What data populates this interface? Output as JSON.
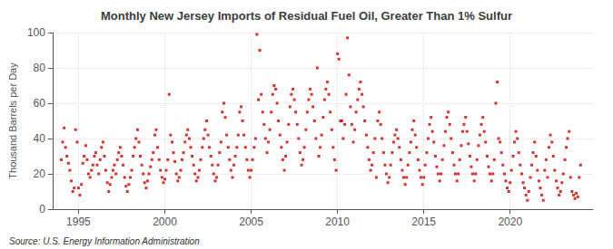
{
  "chart_data": {
    "type": "scatter",
    "title": "Monthly New Jersey Imports of Residual Fuel Oil, Greater Than 1% Sulfur",
    "ylabel": "Thousand Barrels per Day",
    "annotations": [
      "Source: U.S. Energy Information Administration"
    ],
    "color": "#cc0000",
    "marker": "square",
    "grid": true,
    "xlim": [
      1993.5,
      2024.8
    ],
    "xticks": [
      1995,
      2000,
      2005,
      2010,
      2015,
      2020
    ],
    "ylim": [
      0,
      100
    ],
    "yticks": [
      0,
      20,
      40,
      60,
      80,
      100
    ],
    "x": [
      1994.0,
      1994.08,
      1994.17,
      1994.25,
      1994.33,
      1994.42,
      1994.5,
      1994.58,
      1994.67,
      1994.75,
      1994.83,
      1994.92,
      1995.0,
      1995.08,
      1995.17,
      1995.25,
      1995.33,
      1995.42,
      1995.5,
      1995.58,
      1995.67,
      1995.75,
      1995.83,
      1995.92,
      1996.0,
      1996.08,
      1996.17,
      1996.25,
      1996.33,
      1996.42,
      1996.5,
      1996.58,
      1996.67,
      1996.75,
      1996.83,
      1996.92,
      1997.0,
      1997.08,
      1997.17,
      1997.25,
      1997.33,
      1997.42,
      1997.5,
      1997.58,
      1997.67,
      1997.75,
      1997.83,
      1997.92,
      1998.0,
      1998.08,
      1998.17,
      1998.25,
      1998.33,
      1998.42,
      1998.5,
      1998.58,
      1998.67,
      1998.75,
      1998.83,
      1998.92,
      1999.0,
      1999.08,
      1999.17,
      1999.25,
      1999.33,
      1999.42,
      1999.5,
      1999.58,
      1999.67,
      1999.75,
      1999.83,
      1999.92,
      2000.0,
      2000.08,
      2000.17,
      2000.25,
      2000.33,
      2000.42,
      2000.5,
      2000.58,
      2000.67,
      2000.75,
      2000.83,
      2000.92,
      2001.0,
      2001.08,
      2001.17,
      2001.25,
      2001.33,
      2001.42,
      2001.5,
      2001.58,
      2001.67,
      2001.75,
      2001.83,
      2001.92,
      2002.0,
      2002.08,
      2002.17,
      2002.25,
      2002.33,
      2002.42,
      2002.5,
      2002.58,
      2002.67,
      2002.75,
      2002.83,
      2002.92,
      2003.0,
      2003.08,
      2003.17,
      2003.25,
      2003.33,
      2003.42,
      2003.5,
      2003.58,
      2003.67,
      2003.75,
      2003.83,
      2003.92,
      2004.0,
      2004.08,
      2004.17,
      2004.25,
      2004.33,
      2004.42,
      2004.5,
      2004.58,
      2004.67,
      2004.75,
      2004.83,
      2004.92,
      2005.0,
      2005.08,
      2005.17,
      2005.25,
      2005.33,
      2005.42,
      2005.5,
      2005.58,
      2005.67,
      2005.75,
      2005.83,
      2005.92,
      2006.0,
      2006.08,
      2006.17,
      2006.25,
      2006.33,
      2006.42,
      2006.5,
      2006.58,
      2006.67,
      2006.75,
      2006.83,
      2006.92,
      2007.0,
      2007.08,
      2007.17,
      2007.25,
      2007.33,
      2007.42,
      2007.5,
      2007.58,
      2007.67,
      2007.75,
      2007.83,
      2007.92,
      2008.0,
      2008.08,
      2008.17,
      2008.25,
      2008.33,
      2008.42,
      2008.5,
      2008.58,
      2008.67,
      2008.75,
      2008.83,
      2008.92,
      2009.0,
      2009.08,
      2009.17,
      2009.25,
      2009.33,
      2009.42,
      2009.5,
      2009.58,
      2009.67,
      2009.75,
      2009.83,
      2009.92,
      2010.0,
      2010.08,
      2010.17,
      2010.25,
      2010.33,
      2010.42,
      2010.5,
      2010.58,
      2010.67,
      2010.75,
      2010.83,
      2010.92,
      2011.0,
      2011.08,
      2011.17,
      2011.25,
      2011.33,
      2011.42,
      2011.5,
      2011.58,
      2011.67,
      2011.75,
      2011.83,
      2011.92,
      2012.0,
      2012.08,
      2012.17,
      2012.25,
      2012.33,
      2012.42,
      2012.5,
      2012.58,
      2012.67,
      2012.75,
      2012.83,
      2012.92,
      2013.0,
      2013.08,
      2013.17,
      2013.25,
      2013.33,
      2013.42,
      2013.5,
      2013.58,
      2013.67,
      2013.75,
      2013.83,
      2013.92,
      2014.0,
      2014.08,
      2014.17,
      2014.25,
      2014.33,
      2014.42,
      2014.5,
      2014.58,
      2014.67,
      2014.75,
      2014.83,
      2014.92,
      2015.0,
      2015.08,
      2015.17,
      2015.25,
      2015.33,
      2015.42,
      2015.5,
      2015.58,
      2015.67,
      2015.75,
      2015.83,
      2015.92,
      2016.0,
      2016.08,
      2016.17,
      2016.25,
      2016.33,
      2016.42,
      2016.5,
      2016.58,
      2016.67,
      2016.75,
      2016.83,
      2016.92,
      2017.0,
      2017.08,
      2017.17,
      2017.25,
      2017.33,
      2017.42,
      2017.5,
      2017.58,
      2017.67,
      2017.75,
      2017.83,
      2017.92,
      2018.0,
      2018.08,
      2018.17,
      2018.25,
      2018.33,
      2018.42,
      2018.5,
      2018.58,
      2018.67,
      2018.75,
      2018.83,
      2018.92,
      2019.0,
      2019.08,
      2019.17,
      2019.25,
      2019.33,
      2019.42,
      2019.5,
      2019.58,
      2019.67,
      2019.75,
      2019.83,
      2019.92,
      2020.0,
      2020.08,
      2020.17,
      2020.25,
      2020.33,
      2020.42,
      2020.5,
      2020.58,
      2020.67,
      2020.75,
      2020.83,
      2020.92,
      2021.0,
      2021.08,
      2021.17,
      2021.25,
      2021.33,
      2021.42,
      2021.5,
      2021.58,
      2021.67,
      2021.75,
      2021.83,
      2021.92,
      2022.0,
      2022.08,
      2022.17,
      2022.25,
      2022.33,
      2022.42,
      2022.5,
      2022.58,
      2022.67,
      2022.75,
      2022.83,
      2022.92,
      2023.0,
      2023.08,
      2023.17,
      2023.25,
      2023.33,
      2023.42,
      2023.5,
      2023.58,
      2023.67,
      2023.75,
      2023.83,
      2023.92,
      2024.0,
      2024.08
    ],
    "values": [
      28,
      38,
      46,
      35,
      30,
      26,
      22,
      16,
      10,
      12,
      45,
      38,
      12,
      8,
      14,
      26,
      30,
      36,
      28,
      20,
      18,
      22,
      25,
      30,
      32,
      25,
      20,
      28,
      35,
      38,
      30,
      22,
      15,
      10,
      14,
      18,
      22,
      25,
      20,
      28,
      32,
      35,
      30,
      25,
      18,
      13,
      10,
      14,
      18,
      22,
      30,
      35,
      40,
      45,
      38,
      30,
      25,
      20,
      15,
      12,
      16,
      20,
      24,
      28,
      32,
      42,
      45,
      35,
      28,
      22,
      18,
      15,
      17,
      22,
      28,
      65,
      42,
      38,
      32,
      27,
      20,
      16,
      18,
      22,
      28,
      32,
      38,
      42,
      45,
      40,
      35,
      30,
      25,
      20,
      16,
      18,
      22,
      28,
      35,
      40,
      45,
      50,
      42,
      35,
      30,
      25,
      20,
      16,
      18,
      25,
      32,
      38,
      55,
      60,
      52,
      42,
      35,
      28,
      22,
      18,
      25,
      30,
      35,
      42,
      55,
      58,
      50,
      42,
      35,
      28,
      22,
      18,
      22,
      28,
      35,
      40,
      99,
      62,
      90,
      65,
      55,
      48,
      40,
      32,
      38,
      45,
      55,
      65,
      70,
      68,
      60,
      50,
      42,
      35,
      28,
      22,
      30,
      38,
      48,
      58,
      65,
      68,
      62,
      55,
      48,
      40,
      32,
      25,
      28,
      35,
      45,
      55,
      62,
      68,
      65,
      58,
      50,
      40,
      80,
      30,
      35,
      42,
      52,
      62,
      68,
      72,
      65,
      55,
      45,
      35,
      28,
      22,
      88,
      85,
      50,
      50,
      40,
      48,
      65,
      97,
      76,
      58,
      48,
      38,
      45,
      55,
      62,
      68,
      72,
      65,
      58,
      50,
      42,
      35,
      28,
      22,
      25,
      32,
      40,
      18,
      50,
      55,
      48,
      40,
      32,
      25,
      20,
      15,
      18,
      25,
      32,
      38,
      42,
      45,
      40,
      35,
      28,
      22,
      18,
      14,
      18,
      25,
      32,
      38,
      45,
      50,
      42,
      35,
      28,
      22,
      18,
      14,
      18,
      25,
      32,
      40,
      48,
      52,
      44,
      38,
      30,
      24,
      20,
      16,
      20,
      28,
      36,
      44,
      52,
      55,
      48,
      40,
      32,
      25,
      20,
      16,
      20,
      28,
      36,
      44,
      48,
      52,
      44,
      37,
      30,
      24,
      20,
      16,
      20,
      28,
      36,
      42,
      48,
      52,
      44,
      38,
      30,
      24,
      20,
      16,
      20,
      28,
      60,
      72,
      40,
      38,
      32,
      25,
      20,
      16,
      12,
      10,
      15,
      22,
      30,
      38,
      44,
      40,
      32,
      25,
      20,
      15,
      12,
      8,
      5,
      10,
      18,
      25,
      32,
      38,
      30,
      22,
      16,
      12,
      8,
      5,
      22,
      28,
      18,
      35,
      42,
      38,
      30,
      22,
      16,
      12,
      8,
      10,
      15,
      20,
      28,
      35,
      40,
      44,
      18,
      10,
      8,
      6,
      9,
      7,
      18,
      25
    ]
  }
}
